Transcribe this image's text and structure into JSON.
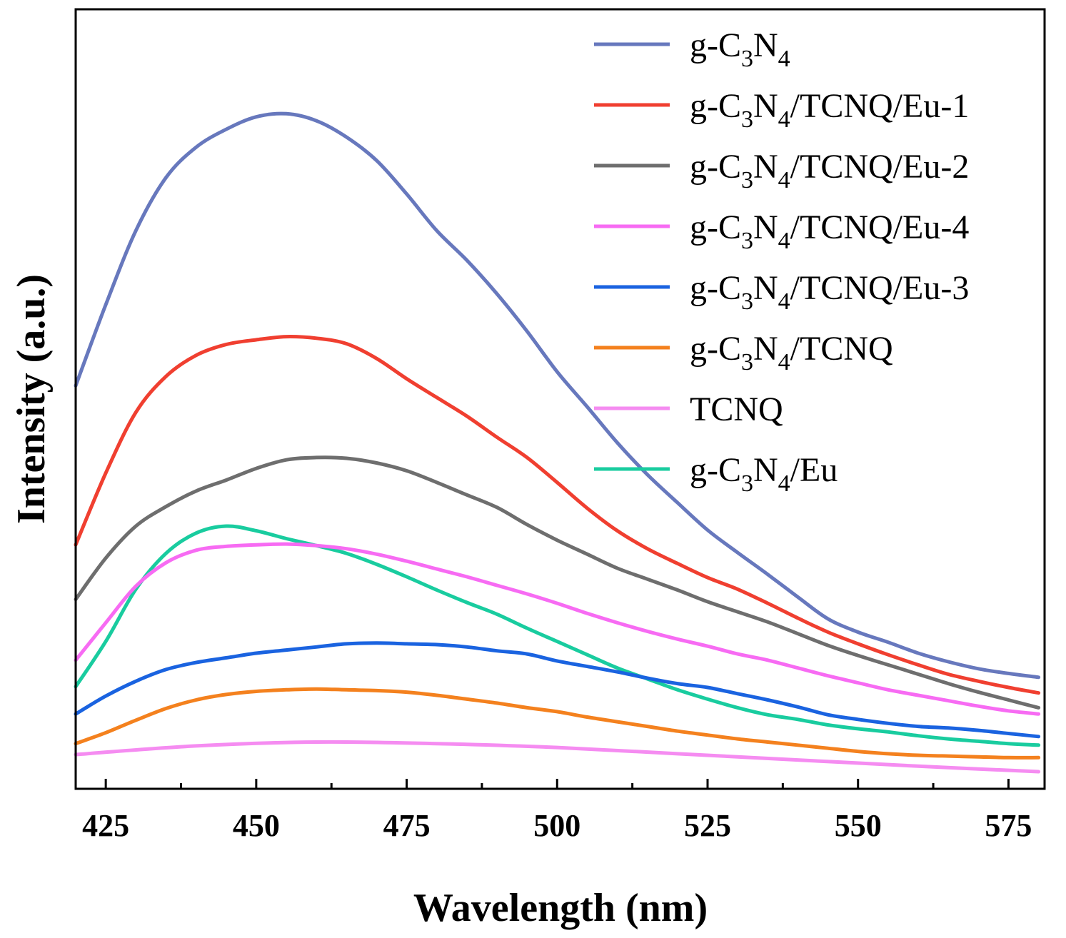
{
  "chart_data": {
    "type": "line",
    "title": "",
    "xlabel": "Wavelength (nm)",
    "ylabel": "Intensity (a.u.)",
    "xlim": [
      420,
      581
    ],
    "ylim": [
      0,
      1.0
    ],
    "x_ticks": [
      425,
      450,
      475,
      500,
      525,
      550,
      575
    ],
    "x_tick_labels": [
      "425",
      "450",
      "475",
      "500",
      "525",
      "550",
      "575"
    ],
    "y_ticks_shown": false,
    "grid": false,
    "legend_position": "top-right",
    "series": [
      {
        "name": "g-C3N4",
        "label_parts": [
          {
            "t": "g-C"
          },
          {
            "t": "3",
            "sub": true
          },
          {
            "t": "N"
          },
          {
            "t": "4",
            "sub": true
          }
        ],
        "color": "#6778BD",
        "x": [
          420,
          425,
          430,
          435,
          440,
          445,
          450,
          455,
          460,
          465,
          470,
          475,
          480,
          485,
          490,
          495,
          500,
          505,
          510,
          515,
          520,
          525,
          530,
          535,
          540,
          545,
          550,
          555,
          560,
          565,
          570,
          575,
          580
        ],
        "y": [
          0.517,
          0.621,
          0.716,
          0.784,
          0.823,
          0.846,
          0.862,
          0.866,
          0.857,
          0.836,
          0.806,
          0.763,
          0.716,
          0.678,
          0.635,
          0.587,
          0.535,
          0.49,
          0.444,
          0.403,
          0.367,
          0.332,
          0.303,
          0.275,
          0.246,
          0.218,
          0.201,
          0.188,
          0.174,
          0.163,
          0.154,
          0.148,
          0.143
        ]
      },
      {
        "name": "g-C3N4/TCNQ/Eu-1",
        "label_parts": [
          {
            "t": "g-C"
          },
          {
            "t": "3",
            "sub": true
          },
          {
            "t": "N"
          },
          {
            "t": "4",
            "sub": true
          },
          {
            "t": "/TCNQ/Eu-1"
          }
        ],
        "color": "#F03F30",
        "x": [
          420,
          425,
          430,
          435,
          440,
          445,
          450,
          455,
          460,
          465,
          470,
          475,
          480,
          485,
          490,
          495,
          500,
          505,
          510,
          515,
          520,
          525,
          530,
          535,
          540,
          545,
          550,
          555,
          560,
          565,
          570,
          575,
          580
        ],
        "y": [
          0.313,
          0.405,
          0.483,
          0.529,
          0.556,
          0.57,
          0.576,
          0.58,
          0.578,
          0.571,
          0.552,
          0.526,
          0.502,
          0.478,
          0.451,
          0.425,
          0.393,
          0.36,
          0.331,
          0.308,
          0.289,
          0.271,
          0.256,
          0.238,
          0.219,
          0.201,
          0.186,
          0.172,
          0.159,
          0.147,
          0.138,
          0.13,
          0.123
        ]
      },
      {
        "name": "g-C3N4/TCNQ/Eu-2",
        "label_parts": [
          {
            "t": "g-C"
          },
          {
            "t": "3",
            "sub": true
          },
          {
            "t": "N"
          },
          {
            "t": "4",
            "sub": true
          },
          {
            "t": "/TCNQ/Eu-2"
          }
        ],
        "color": "#6E6E6E",
        "x": [
          420,
          425,
          430,
          435,
          440,
          445,
          450,
          455,
          460,
          465,
          470,
          475,
          480,
          485,
          490,
          495,
          500,
          505,
          510,
          515,
          520,
          525,
          530,
          535,
          540,
          545,
          550,
          555,
          560,
          565,
          570,
          575,
          580
        ],
        "y": [
          0.243,
          0.296,
          0.337,
          0.362,
          0.382,
          0.396,
          0.411,
          0.422,
          0.425,
          0.424,
          0.418,
          0.408,
          0.393,
          0.377,
          0.361,
          0.339,
          0.319,
          0.301,
          0.283,
          0.269,
          0.255,
          0.24,
          0.227,
          0.214,
          0.199,
          0.184,
          0.171,
          0.159,
          0.147,
          0.135,
          0.124,
          0.114,
          0.104
        ]
      },
      {
        "name": "g-C3N4/TCNQ/Eu-4",
        "label_parts": [
          {
            "t": "g-C"
          },
          {
            "t": "3",
            "sub": true
          },
          {
            "t": "N"
          },
          {
            "t": "4",
            "sub": true
          },
          {
            "t": "/TCNQ/Eu-4"
          }
        ],
        "color": "#F76BF3",
        "x": [
          420,
          425,
          430,
          435,
          440,
          445,
          450,
          455,
          460,
          465,
          470,
          475,
          480,
          485,
          490,
          495,
          500,
          505,
          510,
          515,
          520,
          525,
          530,
          535,
          540,
          545,
          550,
          555,
          560,
          565,
          570,
          575,
          580
        ],
        "y": [
          0.165,
          0.213,
          0.26,
          0.29,
          0.306,
          0.311,
          0.313,
          0.314,
          0.312,
          0.308,
          0.301,
          0.292,
          0.282,
          0.272,
          0.261,
          0.25,
          0.238,
          0.225,
          0.213,
          0.202,
          0.192,
          0.183,
          0.173,
          0.165,
          0.155,
          0.145,
          0.136,
          0.127,
          0.12,
          0.113,
          0.106,
          0.1,
          0.096
        ]
      },
      {
        "name": "g-C3N4/TCNQ/Eu-3",
        "label_parts": [
          {
            "t": "g-C"
          },
          {
            "t": "3",
            "sub": true
          },
          {
            "t": "N"
          },
          {
            "t": "4",
            "sub": true
          },
          {
            "t": "/TCNQ/Eu-3"
          }
        ],
        "color": "#1A63E0",
        "x": [
          420,
          425,
          430,
          435,
          440,
          445,
          450,
          455,
          460,
          465,
          470,
          475,
          480,
          485,
          490,
          495,
          500,
          505,
          510,
          515,
          520,
          525,
          530,
          535,
          540,
          545,
          550,
          555,
          560,
          565,
          570,
          575,
          580
        ],
        "y": [
          0.096,
          0.119,
          0.138,
          0.153,
          0.162,
          0.168,
          0.174,
          0.178,
          0.182,
          0.186,
          0.187,
          0.186,
          0.185,
          0.182,
          0.177,
          0.173,
          0.164,
          0.157,
          0.15,
          0.142,
          0.135,
          0.13,
          0.122,
          0.114,
          0.105,
          0.095,
          0.089,
          0.084,
          0.08,
          0.078,
          0.075,
          0.071,
          0.067
        ]
      },
      {
        "name": "g-C3N4/TCNQ",
        "label_parts": [
          {
            "t": "g-C"
          },
          {
            "t": "3",
            "sub": true
          },
          {
            "t": "N"
          },
          {
            "t": "4",
            "sub": true
          },
          {
            "t": "/TCNQ"
          }
        ],
        "color": "#F4811E",
        "x": [
          420,
          425,
          430,
          435,
          440,
          445,
          450,
          455,
          460,
          465,
          470,
          475,
          480,
          485,
          490,
          495,
          500,
          505,
          510,
          515,
          520,
          525,
          530,
          535,
          540,
          545,
          550,
          555,
          560,
          565,
          570,
          575,
          580
        ],
        "y": [
          0.058,
          0.072,
          0.088,
          0.103,
          0.114,
          0.121,
          0.125,
          0.127,
          0.128,
          0.127,
          0.126,
          0.124,
          0.12,
          0.115,
          0.11,
          0.104,
          0.099,
          0.092,
          0.086,
          0.08,
          0.074,
          0.069,
          0.064,
          0.06,
          0.056,
          0.052,
          0.048,
          0.045,
          0.043,
          0.042,
          0.041,
          0.04,
          0.04
        ]
      },
      {
        "name": "TCNQ",
        "label_parts": [
          {
            "t": "TCNQ"
          }
        ],
        "color": "#F58CF1",
        "x": [
          420,
          440,
          460,
          480,
          500,
          520,
          540,
          560,
          580
        ],
        "y": [
          0.044,
          0.055,
          0.06,
          0.058,
          0.053,
          0.045,
          0.037,
          0.029,
          0.022
        ]
      },
      {
        "name": "g-C3N4/Eu",
        "label_parts": [
          {
            "t": "g-C"
          },
          {
            "t": "3",
            "sub": true
          },
          {
            "t": "N"
          },
          {
            "t": "4",
            "sub": true
          },
          {
            "t": "/Eu"
          }
        ],
        "color": "#19CC9F",
        "x": [
          420,
          425,
          430,
          435,
          440,
          445,
          450,
          455,
          460,
          465,
          470,
          475,
          480,
          485,
          490,
          495,
          500,
          505,
          510,
          515,
          520,
          525,
          530,
          535,
          540,
          545,
          550,
          555,
          560,
          565,
          570,
          575,
          580
        ],
        "y": [
          0.131,
          0.189,
          0.256,
          0.302,
          0.328,
          0.337,
          0.331,
          0.321,
          0.312,
          0.302,
          0.288,
          0.272,
          0.255,
          0.239,
          0.224,
          0.206,
          0.189,
          0.172,
          0.155,
          0.141,
          0.127,
          0.115,
          0.104,
          0.095,
          0.089,
          0.082,
          0.077,
          0.073,
          0.068,
          0.064,
          0.061,
          0.058,
          0.056
        ]
      }
    ]
  }
}
